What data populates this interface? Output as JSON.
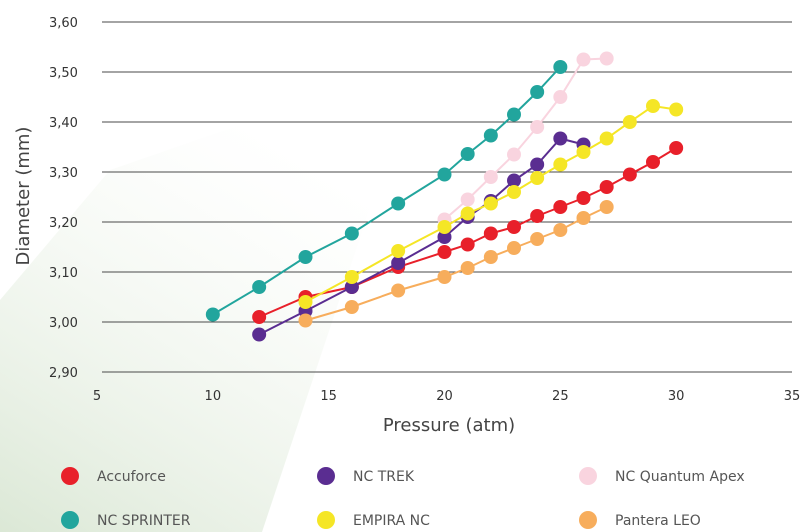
{
  "chart_data": {
    "type": "line",
    "xlabel": "Pressure (atm)",
    "ylabel": "Diameter (mm)",
    "xlim": [
      5,
      35
    ],
    "ylim": [
      2.9,
      3.6
    ],
    "x_ticks": [
      "5",
      "10",
      "15",
      "20",
      "25",
      "30",
      "35"
    ],
    "y_ticks": [
      "2,90",
      "3,00",
      "3,10",
      "3,20",
      "3,30",
      "3,40",
      "3,50",
      "3,60"
    ],
    "grid": "horizontal",
    "legend": "bottom",
    "series": [
      {
        "name": "Accuforce",
        "color": "#e8202a",
        "x": [
          12,
          14,
          16,
          18,
          20,
          21,
          22,
          23,
          24,
          25,
          26,
          27,
          28,
          29,
          30
        ],
        "y": [
          3.01,
          3.05,
          3.07,
          3.11,
          3.14,
          3.155,
          3.177,
          3.19,
          3.212,
          3.23,
          3.248,
          3.27,
          3.295,
          3.32,
          3.348
        ]
      },
      {
        "name": "NC TREK",
        "color": "#5a2d91",
        "x": [
          12,
          14,
          16,
          18,
          20,
          21,
          22,
          23,
          24,
          25,
          26
        ],
        "y": [
          2.975,
          3.022,
          3.07,
          3.118,
          3.17,
          3.21,
          3.242,
          3.283,
          3.315,
          3.367,
          3.355
        ]
      },
      {
        "name": "NC Quantum Apex",
        "color": "#f9d4df",
        "x": [
          20,
          21,
          22,
          23,
          24,
          25,
          26,
          27
        ],
        "y": [
          3.205,
          3.245,
          3.29,
          3.335,
          3.39,
          3.45,
          3.525,
          3.527
        ]
      },
      {
        "name": "NC SPRINTER",
        "color": "#22a59d",
        "x": [
          10,
          12,
          14,
          16,
          18,
          20,
          21,
          22,
          23,
          24,
          25
        ],
        "y": [
          3.015,
          3.07,
          3.13,
          3.177,
          3.237,
          3.295,
          3.336,
          3.373,
          3.415,
          3.46,
          3.51
        ]
      },
      {
        "name": "EMPIRA NC",
        "color": "#f5e626",
        "x": [
          14,
          16,
          18,
          20,
          21,
          22,
          23,
          24,
          25,
          26,
          27,
          28,
          29,
          30
        ],
        "y": [
          3.04,
          3.09,
          3.142,
          3.19,
          3.217,
          3.237,
          3.26,
          3.288,
          3.315,
          3.34,
          3.367,
          3.4,
          3.432,
          3.425
        ]
      },
      {
        "name": "Pantera LEO",
        "color": "#f7ad5c",
        "x": [
          14,
          16,
          18,
          20,
          21,
          22,
          23,
          24,
          25,
          26,
          27
        ],
        "y": [
          3.003,
          3.03,
          3.063,
          3.09,
          3.108,
          3.13,
          3.148,
          3.166,
          3.184,
          3.208,
          3.23
        ]
      }
    ]
  }
}
